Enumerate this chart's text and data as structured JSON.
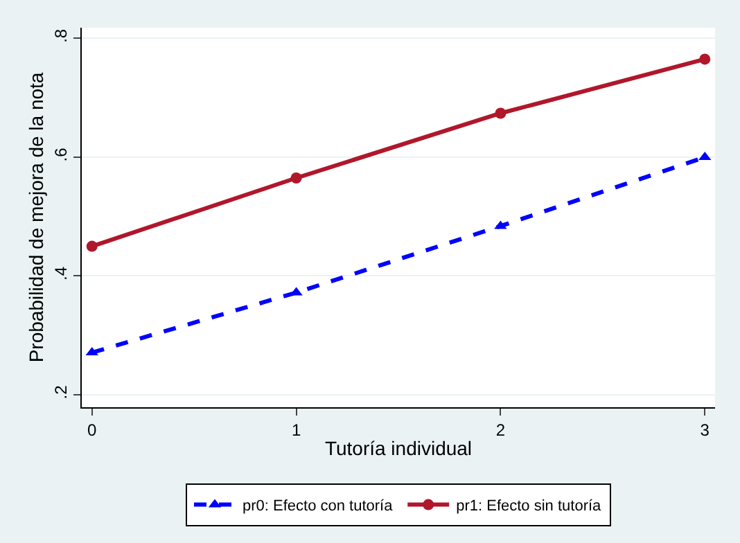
{
  "chart_data": {
    "type": "line",
    "xlabel": "Tutoría individual",
    "ylabel": "Probabilidad de mejora de la nota",
    "x": [
      0,
      1,
      2,
      3
    ],
    "series": [
      {
        "name": "pr0: Efecto con tutoría",
        "color": "#0000ff",
        "values": [
          0.271,
          0.372,
          0.484,
          0.6
        ],
        "marker": "triangle",
        "line_style": "dashed"
      },
      {
        "name": "pr1: Efecto sin tutoría",
        "color": "#b0172b",
        "values": [
          0.45,
          0.565,
          0.674,
          0.765
        ],
        "marker": "circle",
        "line_style": "solid"
      }
    ],
    "xlim": [
      -0.05,
      3.05
    ],
    "ylim": [
      0.179,
      0.818
    ],
    "xticks": [
      0,
      1,
      2,
      3
    ],
    "yticks": [
      {
        "value": 0.2,
        "label": ".2"
      },
      {
        "value": 0.4,
        "label": ".4"
      },
      {
        "value": 0.6,
        "label": ".6"
      },
      {
        "value": 0.8,
        "label": ".8"
      }
    ],
    "grid": "y",
    "legend": "bottom"
  }
}
